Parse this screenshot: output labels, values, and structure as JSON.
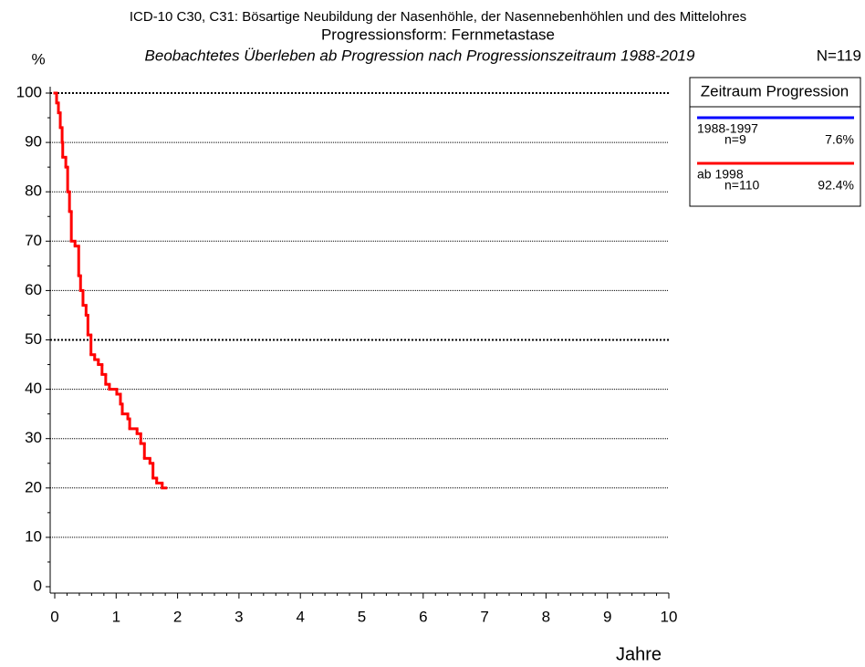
{
  "chart_data": {
    "type": "step",
    "title": "ICD-10 C30, C31: Bösartige Neubildung der Nasenhöhle, der Nasennebenhöhlen und des Mittelohres",
    "subtitle": "Progressionsform: Fernmetastase",
    "subtitle2": "Beobachtetes Überleben ab Progression nach Progressionszeitraum 1988-2019",
    "total": "N=119",
    "y_label": "%",
    "x_label": "Jahre",
    "legend_title": "Zeitraum Progression",
    "legend": "upper right",
    "xlim": [
      0,
      10
    ],
    "xticks": [
      0,
      1,
      2,
      3,
      4,
      5,
      6,
      7,
      8,
      9,
      10
    ],
    "ylim": [
      0,
      100
    ],
    "yticks": [
      0,
      10,
      20,
      30,
      40,
      50,
      60,
      70,
      80,
      90,
      100
    ],
    "grid": true,
    "bold_grid": [
      50,
      100
    ],
    "series": [
      {
        "name": "1988-1997",
        "color": "#0000ff",
        "n": {
          "value": 9,
          "label": "n=9"
        },
        "share": {
          "value": 7.6,
          "label": "7.6%"
        },
        "x": [],
        "values": []
      },
      {
        "name": "ab 1998",
        "color": "#ff0000",
        "n": {
          "value": 110,
          "label": "n=110"
        },
        "share": {
          "value": 92.4,
          "label": "92.4%"
        },
        "x": [
          0,
          0.03,
          0.06,
          0.09,
          0.12,
          0.13,
          0.18,
          0.21,
          0.24,
          0.27,
          0.33,
          0.39,
          0.42,
          0.46,
          0.51,
          0.54,
          0.59,
          0.65,
          0.71,
          0.77,
          0.83,
          0.89,
          1.01,
          1.07,
          1.1,
          1.19,
          1.22,
          1.34,
          1.4,
          1.46,
          1.55,
          1.6,
          1.66,
          1.75
        ],
        "values": [
          100,
          98,
          96,
          93,
          90,
          87,
          85,
          80,
          76,
          70,
          69,
          63,
          60,
          57,
          55,
          51,
          47,
          46,
          45,
          43,
          41,
          40,
          39,
          37,
          35,
          34,
          32,
          31,
          29,
          26,
          25,
          22,
          21,
          20
        ]
      }
    ]
  }
}
